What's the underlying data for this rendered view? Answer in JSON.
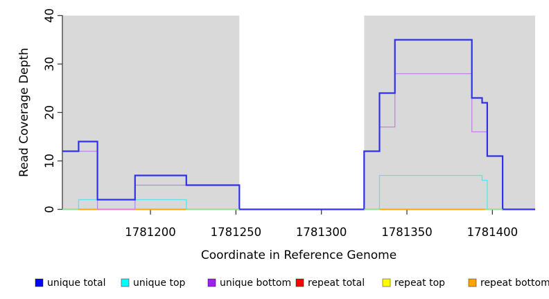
{
  "figure": {
    "background": "#ffffff",
    "plot_background_gray": "#d9d9d9",
    "axis_color": "#3d3d3d",
    "text_color": "#000000"
  },
  "axes": {
    "x": {
      "label": "Coordinate in Reference Genome",
      "ticks": [
        1781200,
        1781250,
        1781300,
        1781350,
        1781400
      ],
      "domain": [
        1781148.5,
        1781425
      ]
    },
    "y": {
      "label": "Read Coverage Depth",
      "ticks": [
        0,
        10,
        20,
        30,
        40
      ],
      "domain": [
        0,
        40
      ]
    }
  },
  "shaded_regions": [
    {
      "name": "left-gray-region",
      "start": 1781148.5,
      "end": 1781252,
      "color": "#d9d9d9"
    },
    {
      "name": "right-gray-region",
      "start": 1781325,
      "end": 1781425,
      "color": "#d9d9d9"
    }
  ],
  "chart_data": {
    "type": "line",
    "step": true,
    "title": "",
    "xlabel": "Coordinate in Reference Genome",
    "ylabel": "Read Coverage Depth",
    "xlim": [
      1781148.5,
      1781425
    ],
    "ylim": [
      0,
      40
    ],
    "grid": false,
    "legend_position": "bottom",
    "series": [
      {
        "name": "repeat total",
        "color": "#e30000",
        "legend_color": "#ff0000",
        "width": 1.3,
        "points": [
          [
            1781148.5,
            0
          ],
          [
            1781425,
            0
          ]
        ]
      },
      {
        "name": "repeat top",
        "color": "#f5f500",
        "legend_color": "#ffff00",
        "width": 1.3,
        "points": [
          [
            1781148.5,
            0
          ],
          [
            1781425,
            0
          ]
        ]
      },
      {
        "name": "repeat bottom",
        "color": "#ffa500",
        "legend_color": "#ffa500",
        "width": 1.5,
        "points": [
          [
            1781148.5,
            0
          ],
          [
            1781425,
            0
          ]
        ]
      },
      {
        "name": "unique bottom",
        "color": "#be84e2",
        "legend_color": "#a020f0",
        "width": 1.3,
        "points": [
          [
            1781148.5,
            12
          ],
          [
            1781169,
            0
          ],
          [
            1781191,
            5
          ],
          [
            1781252,
            0
          ],
          [
            1781325,
            12
          ],
          [
            1781334,
            17
          ],
          [
            1781343,
            28
          ],
          [
            1781388,
            16
          ],
          [
            1781397,
            11
          ],
          [
            1781406,
            0
          ],
          [
            1781425,
            0
          ]
        ]
      },
      {
        "name": "unique top",
        "color": "#5ce2ee",
        "legend_color": "#00ffff",
        "width": 1.3,
        "points": [
          [
            1781148.5,
            0
          ],
          [
            1781158,
            2
          ],
          [
            1781221,
            0
          ],
          [
            1781334,
            7
          ],
          [
            1781394,
            6
          ],
          [
            1781397,
            0
          ],
          [
            1781425,
            0
          ]
        ]
      },
      {
        "name": "unique total",
        "color": "#3030e8",
        "legend_color": "#0000ff",
        "width": 2.2,
        "points": [
          [
            1781148.5,
            12
          ],
          [
            1781158,
            14
          ],
          [
            1781169,
            2
          ],
          [
            1781191,
            7
          ],
          [
            1781221,
            5
          ],
          [
            1781252,
            0
          ],
          [
            1781325,
            12
          ],
          [
            1781334,
            24
          ],
          [
            1781343,
            35
          ],
          [
            1781388,
            23
          ],
          [
            1781394,
            22
          ],
          [
            1781397,
            11
          ],
          [
            1781406,
            0
          ],
          [
            1781425,
            0
          ]
        ]
      }
    ],
    "baseline_blend_segments": [
      {
        "start": 1781148.5,
        "end": 1781158,
        "color": "#97db9b"
      },
      {
        "start": 1781158,
        "end": 1781169,
        "color": "#ffa500"
      },
      {
        "start": 1781169,
        "end": 1781191,
        "color": "#e678bf"
      },
      {
        "start": 1781191,
        "end": 1781221,
        "color": "#ffa500"
      },
      {
        "start": 1781221,
        "end": 1781252,
        "color": "#97db9b"
      },
      {
        "start": 1781325,
        "end": 1781334,
        "color": "#97db9b"
      },
      {
        "start": 1781334,
        "end": 1781396,
        "color": "#ffa500"
      },
      {
        "start": 1781396,
        "end": 1781406,
        "color": "#97db9b"
      }
    ]
  },
  "legend": {
    "items": [
      {
        "label": "unique total",
        "color": "#0000ff"
      },
      {
        "label": "unique top",
        "color": "#00ffff"
      },
      {
        "label": "unique bottom",
        "color": "#a020f0"
      },
      {
        "label": "repeat total",
        "color": "#ff0000"
      },
      {
        "label": "repeat top",
        "color": "#ffff00"
      },
      {
        "label": "repeat bottom",
        "color": "#ffa500"
      }
    ]
  }
}
